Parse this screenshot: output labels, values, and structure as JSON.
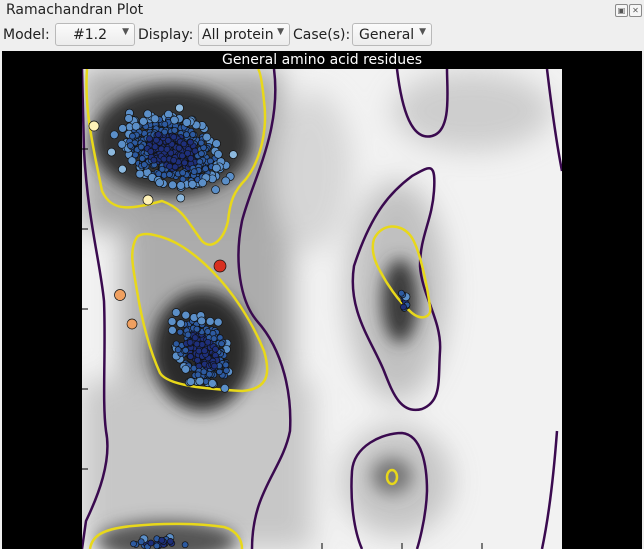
{
  "window": {
    "title": "Ramachandran Plot"
  },
  "toolbar": {
    "model_label": "Model:",
    "model_value": "#1.2",
    "display_label": "Display:",
    "display_value": "All protein",
    "cases_label": "Case(s):",
    "cases_value": "General"
  },
  "plot": {
    "title": "General amino acid residues",
    "contour_colors": {
      "outer": "#3a0a4f",
      "inner": "#e8d81a"
    },
    "point_colors": [
      "#1e2f7a",
      "#2d5aa0",
      "#5b8fc8",
      "#8db9de",
      "#c6e2f0",
      "#fff2b8",
      "#f0a060",
      "#d83020"
    ]
  }
}
